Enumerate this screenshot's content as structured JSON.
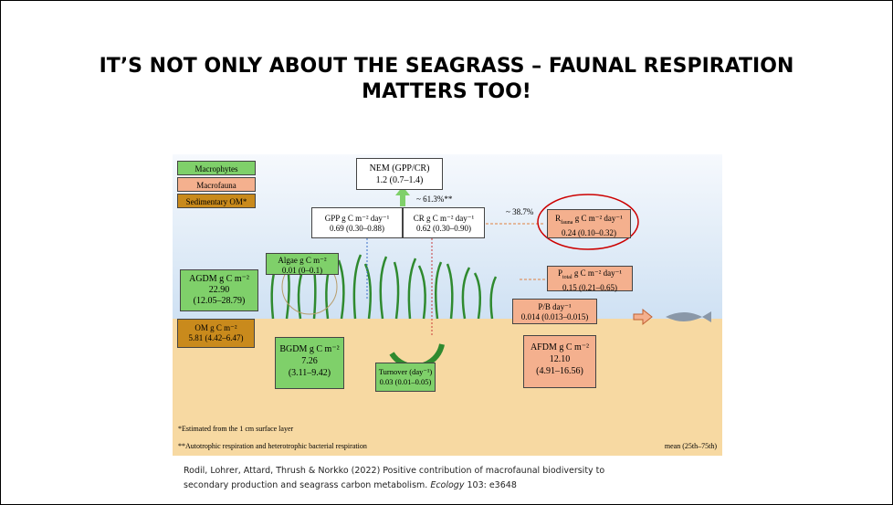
{
  "slide_title": [
    "IT’S NOT ONLY ABOUT THE SEAGRASS – FAUNAL RESPIRATION",
    "MATTERS TOO!"
  ],
  "legend": [
    "Macrophytes",
    "Macrofauna",
    "Sedimentary OM*"
  ],
  "nem": {
    "label": "NEM (GPP/CR)",
    "value": "1.2 (0.7–1.4)"
  },
  "gpp_share": "~ 61.3%**",
  "cr_share": "~ 38.7%",
  "gpp": {
    "label": "GPP g C m⁻² day⁻¹",
    "value": "0.69 (0.30–0.88)"
  },
  "cr": {
    "label": "CR g C m⁻² day⁻¹",
    "value": "0.62 (0.30–0.90)"
  },
  "r_fauna": {
    "symbol": "R",
    "sub": "fauna",
    "unit": " g C m⁻² day⁻¹",
    "value": "0.24 (0.10–0.32)"
  },
  "algae": {
    "label": "Algae g C m⁻²",
    "value": "0.01 (0–0.1)"
  },
  "agdm": {
    "label": "AGDM g C m⁻²",
    "value": "22.90",
    "range": "(12.05–28.79)"
  },
  "p_total": {
    "symbol": "P",
    "sub": "total",
    "unit": " g C m⁻² day⁻¹",
    "value": "0.15 (0.21–0.65)"
  },
  "pb": {
    "label": "P/B day⁻¹",
    "value": "0.014 (0.013–0.015)"
  },
  "om": {
    "label": "OM g C m⁻²",
    "value": "5.81 (4.42–6.47)"
  },
  "bgdm": {
    "label": "BGDM g C m⁻²",
    "value": "7.26",
    "range": "(3.11–9.42)"
  },
  "turnover": {
    "label": "Turnover (day⁻¹)",
    "value": "0.03 (0.01–0.05)"
  },
  "afdm": {
    "label": "AFDM g C m⁻²",
    "value": "12.10",
    "range": "(4.91–16.56)"
  },
  "footnotes": [
    "*Estimated from the 1 cm surface layer",
    "**Autotrophic respiration and heterotrophic bacterial respiration"
  ],
  "stat_note": "mean (25th–75th)",
  "citation": {
    "line1": "Rodil, Lohrer, Attard, Thrush & Norkko (2022) Positive contribution of macrofaunal biodiversity to",
    "line2": "secondary production and seagrass carbon metabolism. ",
    "journal": "Ecology",
    "tail": " 103: e3648"
  }
}
